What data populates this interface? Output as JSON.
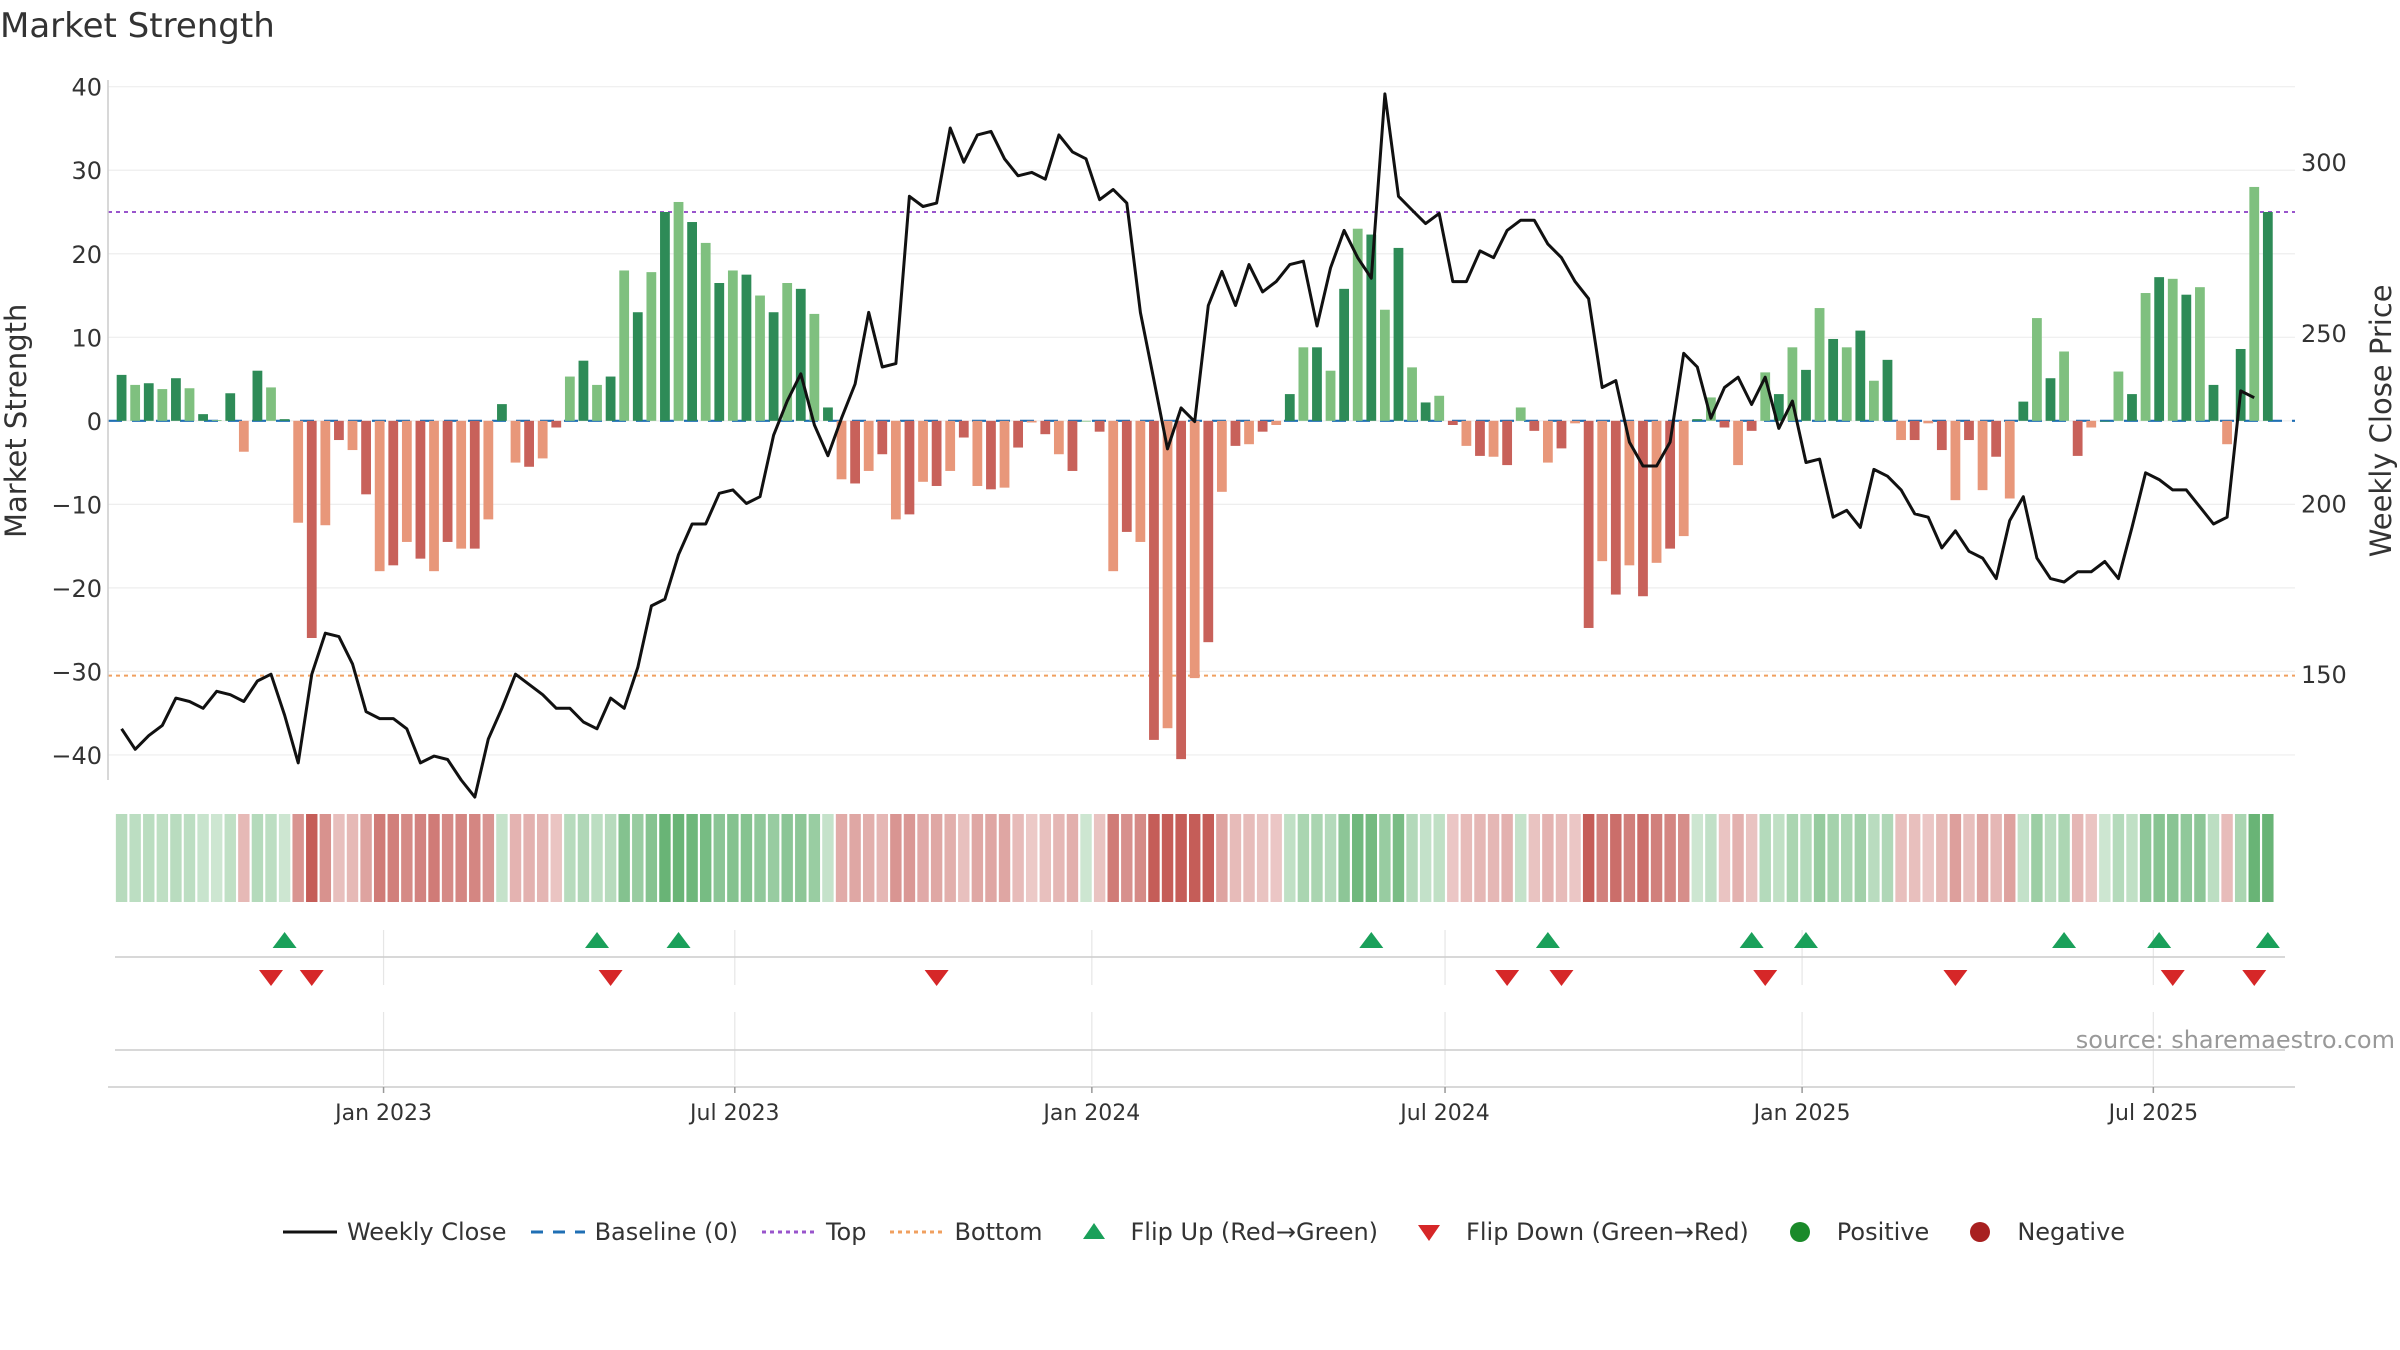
{
  "title": "Market Strength",
  "source": "source: sharemaestro.com",
  "legend": {
    "weekly_close": "Weekly Close",
    "baseline": "Baseline (0)",
    "top": "Top",
    "bottom": "Bottom",
    "flip_up": "Flip Up (Red→Green)",
    "flip_down": "Flip Down (Green→Red)",
    "positive": "Positive",
    "negative": "Negative"
  },
  "colors": {
    "strong_green": "#2e8b57",
    "light_green": "#7fc07f",
    "strong_red": "#c8615a",
    "light_red": "#e8977a",
    "top_line": "#9955cc",
    "bottom_line": "#f0a060",
    "baseline": "#1f6fb4",
    "price_line": "#111111",
    "flip_up": "#1aa05a",
    "flip_down": "#d62728",
    "positive": "#1a8a2a",
    "negative": "#a82020"
  },
  "chart_data": {
    "type": "bar",
    "title": "Market Strength",
    "ylabel": "Market Strength",
    "y2label": "Weekly Close Price",
    "ylim": [
      -43,
      42
    ],
    "y2lim": [
      119,
      327
    ],
    "yticks": [
      40,
      30,
      20,
      10,
      0,
      -10,
      -20,
      -30,
      -40
    ],
    "ytick_labels": [
      "40",
      "30",
      "20",
      "10",
      "0",
      "−10",
      "−20",
      "−30",
      "−40"
    ],
    "y2ticks": [
      300,
      250,
      200,
      150
    ],
    "x_start": "2022-08-12",
    "x_end": "2025-09-12",
    "xticks": [
      "2023-01-01",
      "2023-07-01",
      "2024-01-01",
      "2024-07-01",
      "2025-01-01",
      "2025-07-01"
    ],
    "xtick_labels": [
      "Jan 2023",
      "Jul 2023",
      "Jan 2024",
      "Jul 2024",
      "Jan 2025",
      "Jul 2025"
    ],
    "top_level": 25,
    "bottom_level": -30.5,
    "baseline_level": 0,
    "grid": true,
    "legend_position": "bottom",
    "series": [
      {
        "name": "Market Strength",
        "start": "2022-08-19",
        "step_days": 7,
        "values": [
          5.5,
          4.3,
          4.5,
          3.8,
          5.1,
          3.9,
          0.8,
          0.1,
          3.3,
          -3.7,
          6,
          4,
          0.2,
          -12.2,
          -26,
          -12.5,
          -2.3,
          -3.5,
          -8.8,
          -18,
          -17.3,
          -14.5,
          -16.5,
          -18,
          -14.5,
          -15.3,
          -15.3,
          -11.8,
          2,
          -5,
          -5.5,
          -4.5,
          -0.8,
          5.3,
          7.2,
          4.3,
          5.3,
          18,
          13,
          17.8,
          25,
          26.2,
          23.8,
          21.3,
          16.5,
          18,
          17.5,
          15,
          13,
          16.5,
          15.8,
          12.8,
          1.6,
          -7,
          -7.5,
          -6,
          -4,
          -11.8,
          -11.2,
          -7.3,
          -7.8,
          -6,
          -2,
          -7.8,
          -8.2,
          -8,
          -3.2,
          -0.2,
          -1.6,
          -4,
          -6,
          0,
          -1.3,
          -18,
          -13.3,
          -14.5,
          -38.2,
          -36.8,
          -40.5,
          -30.8,
          -26.5,
          -8.5,
          -3,
          -2.8,
          -1.3,
          -0.5,
          3.2,
          8.8,
          8.8,
          6,
          15.8,
          23,
          22.3,
          13.3,
          20.7,
          6.4,
          2.2,
          3,
          -0.5,
          -3,
          -4.2,
          -4.3,
          -5.3,
          1.6,
          -1.2,
          -5,
          -3.3,
          -0.3,
          -24.8,
          -16.8,
          -20.8,
          -17.3,
          -21,
          -17,
          -15.3,
          -13.8,
          0.2,
          2.8,
          -0.8,
          -5.3,
          -1.2,
          5.8,
          3.2,
          8.8,
          6.1,
          13.5,
          9.8,
          8.8,
          10.8,
          4.8,
          7.3,
          -2.3,
          -2.3,
          -0.3,
          -3.5,
          -9.5,
          -2.3,
          -8.3,
          -4.3,
          -9.3,
          2.3,
          12.3,
          5.1,
          8.3,
          -4.2,
          -0.8,
          0,
          5.9,
          3.2,
          15.3,
          17.2,
          17,
          15.1,
          16,
          4.3,
          -2.8,
          8.6,
          28,
          25
        ]
      },
      {
        "name": "Weekly Close",
        "start": "2022-08-19",
        "step_days": 7,
        "values": [
          134,
          128,
          132,
          135,
          143,
          142,
          140,
          145,
          144,
          142,
          148,
          150,
          138,
          124,
          150,
          162,
          161,
          153,
          139,
          137,
          137,
          134,
          124,
          126,
          125,
          119,
          114,
          131,
          140,
          150,
          147,
          144,
          140,
          140,
          136,
          134,
          143,
          140,
          152,
          170,
          172,
          185,
          194,
          194,
          203,
          204,
          200,
          202,
          220,
          230,
          238,
          223,
          214,
          225,
          235,
          256,
          240,
          241,
          290,
          287,
          288,
          310,
          300,
          308,
          309,
          301,
          296,
          297,
          295,
          308,
          303,
          301,
          289,
          292,
          288,
          256,
          236,
          216,
          228,
          224,
          258,
          268,
          258,
          270,
          262,
          265,
          270,
          271,
          252,
          269,
          280,
          272,
          266,
          320,
          290,
          286,
          282,
          285,
          265,
          265,
          274,
          272,
          280,
          283,
          283,
          276,
          272,
          265,
          260,
          234,
          236,
          218,
          211,
          211,
          218,
          244,
          240,
          225,
          234,
          237,
          229,
          237,
          222,
          230,
          212,
          213,
          196,
          198,
          193,
          210,
          208,
          204,
          197,
          196,
          187,
          192,
          186,
          184,
          178,
          195,
          202,
          184,
          178,
          177,
          180,
          180,
          183,
          178,
          193,
          209,
          207,
          204,
          204,
          199,
          194,
          196,
          233,
          231
        ]
      }
    ],
    "flip_up_dates": [
      "2022-11-11",
      "2023-04-21",
      "2023-06-02",
      "2024-05-24",
      "2024-08-23",
      "2024-12-06",
      "2025-01-03",
      "2025-05-16",
      "2025-07-04",
      "2025-08-29"
    ],
    "flip_down_dates": [
      "2022-11-04",
      "2022-11-25",
      "2023-04-28",
      "2023-10-13",
      "2024-08-02",
      "2024-08-30",
      "2024-12-13",
      "2025-03-21",
      "2025-07-11",
      "2025-08-22"
    ]
  }
}
